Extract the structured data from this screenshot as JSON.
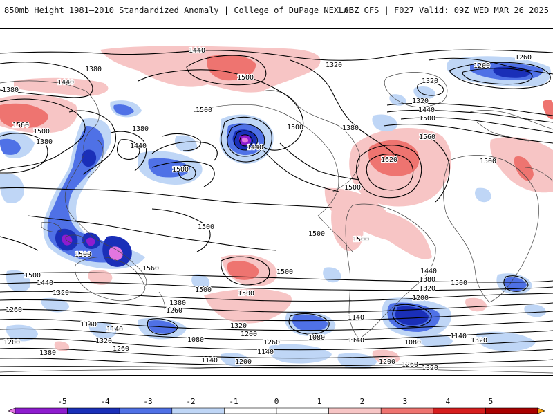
{
  "header": {
    "title": "850mb Height 1981–2010 Standardized Anomaly | College of DuPage NEXLAB",
    "run": "06Z GFS | F027 Valid: 09Z WED MAR 26 2025"
  },
  "colors": {
    "neg5": "#e276e0",
    "neg4": "#8e1ccf",
    "neg3": "#1a2fb8",
    "neg2": "#4f71e6",
    "neg1": "#bfd6f6",
    "zero": "#ffffff",
    "pos1": "#f7c5c5",
    "pos2": "#ee7470",
    "pos3": "#d61e1e",
    "pos4": "#a80000",
    "pos5": "#f3a20f",
    "contour": "#000000",
    "boundary": "#444444"
  },
  "colorbar": {
    "ticks": [
      "-5",
      "-4",
      "-3",
      "-2",
      "-1",
      "0",
      "1",
      "2",
      "3",
      "4",
      "5"
    ]
  },
  "contour_labels": [
    "1440",
    "1380",
    "1320",
    "1260",
    "1200",
    "1500",
    "1560",
    "1620",
    "1140",
    "1080"
  ],
  "map": {
    "labels": [
      "1440",
      "1380",
      "1440",
      "1320",
      "1500",
      "1380",
      "1500",
      "1380",
      "1320",
      "1200",
      "1260",
      "1320",
      "1440",
      "1500",
      "1560",
      "1500",
      "1380",
      "1440",
      "1440",
      "1380",
      "1500",
      "1500",
      "1500",
      "1620",
      "1560",
      "1500",
      "1500",
      "1500",
      "1500",
      "1500",
      "1560",
      "1500",
      "1500",
      "1500",
      "1440",
      "1380",
      "1320",
      "1500",
      "1500",
      "1440",
      "1320",
      "1260",
      "1200",
      "1380",
      "1140",
      "1260",
      "1140",
      "1320",
      "1200",
      "1260",
      "1080",
      "1140",
      "1080",
      "1140",
      "1260",
      "1140",
      "1320",
      "1200",
      "1080",
      "1140",
      "1320",
      "1380",
      "1140",
      "1200",
      "1200",
      "1260",
      "1320"
    ]
  }
}
